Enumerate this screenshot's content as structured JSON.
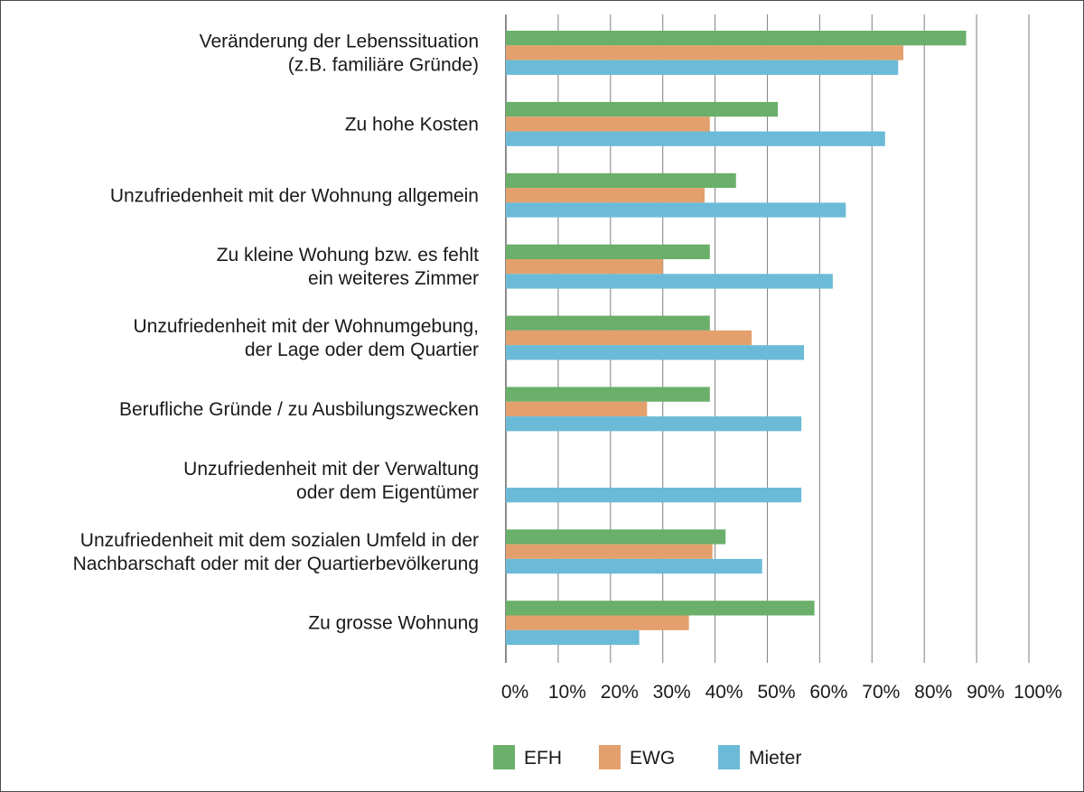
{
  "chart_data": {
    "type": "bar",
    "orientation": "horizontal",
    "categories": [
      [
        "Veränderung der Lebenssituation",
        "(z.B. familiäre Gründe)"
      ],
      [
        "Zu hohe Kosten"
      ],
      [
        "Unzufriedenheit mit der Wohnung allgemein"
      ],
      [
        "Zu kleine Wohung bzw. es fehlt",
        "ein weiteres Zimmer"
      ],
      [
        "Unzufriedenheit mit der Wohnumgebung,",
        "der Lage oder dem Quartier"
      ],
      [
        "Berufliche Gründe / zu Ausbilungszwecken"
      ],
      [
        "Unzufriedenheit mit der Verwaltung",
        "oder dem Eigentümer"
      ],
      [
        "Unzufriedenheit mit dem sozialen Umfeld in der",
        "Nachbarschaft oder mit der Quartierbevölkerung"
      ],
      [
        "Zu grosse Wohnung"
      ]
    ],
    "series": [
      {
        "name": "EFH",
        "color": "#6aaf6a",
        "values": [
          88,
          52,
          44,
          39,
          39,
          39,
          null,
          42,
          59
        ]
      },
      {
        "name": "EWG",
        "color": "#e3a06c",
        "values": [
          76,
          39,
          38,
          30,
          47,
          27,
          null,
          39.5,
          35
        ]
      },
      {
        "name": "Mieter",
        "color": "#6bbbd8",
        "values": [
          75,
          72.5,
          65,
          62.5,
          57,
          56.5,
          56.5,
          49,
          25.5
        ]
      }
    ],
    "xlim": [
      0,
      100
    ],
    "xticks": [
      "0%",
      "10%",
      "20%",
      "30%",
      "40%",
      "50%",
      "60%",
      "70%",
      "80%",
      "90%",
      "100%"
    ],
    "grid": "vertical",
    "legend_position": "bottom"
  }
}
